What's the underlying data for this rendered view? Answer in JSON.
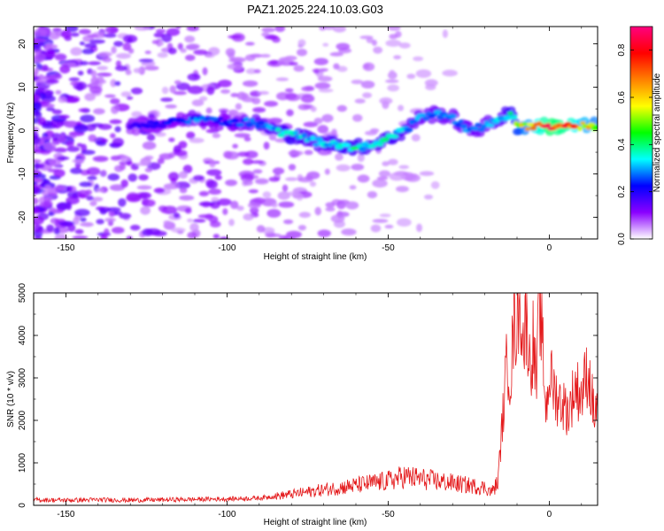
{
  "title": "PAZ1.2025.224.10.03.G03",
  "chart_data": [
    {
      "type": "heatmap",
      "xlabel": "Height of straight line (km)",
      "ylabel": "Frequency (Hz)",
      "xlim": [
        -160,
        15
      ],
      "ylim": [
        -25,
        24
      ],
      "xticks": [
        -150,
        -100,
        -50,
        0
      ],
      "yticks": [
        -20,
        -10,
        0,
        10,
        20
      ],
      "colorbar": {
        "label": "Normalized spectral amplitude",
        "range": [
          0.0,
          0.9
        ],
        "ticks": [
          0.0,
          0.2,
          0.4,
          0.6,
          0.8
        ],
        "colormap": [
          "#ffffff",
          "#8a00ff",
          "#0000ff",
          "#00ffff",
          "#00ff00",
          "#ffff00",
          "#ff8000",
          "#ff0000",
          "#ff0080"
        ]
      },
      "ridge": {
        "x": [
          -130,
          -115,
          -110,
          -100,
          -92,
          -85,
          -80,
          -75,
          -70,
          -65,
          -60,
          -55,
          -50,
          -45,
          -40,
          -35,
          -30,
          -25,
          -20,
          -15,
          -12,
          -10,
          -5,
          0,
          5,
          10,
          15
        ],
        "y": [
          1,
          2,
          3,
          2,
          2,
          0,
          -1,
          -2,
          -3,
          -3,
          -4,
          -3,
          -2,
          0,
          3,
          4,
          3,
          0,
          1,
          3,
          4,
          1,
          1,
          1,
          1,
          1,
          1
        ],
        "amplitude": [
          0.2,
          0.25,
          0.3,
          0.25,
          0.3,
          0.35,
          0.4,
          0.35,
          0.35,
          0.4,
          0.4,
          0.35,
          0.4,
          0.35,
          0.3,
          0.3,
          0.3,
          0.3,
          0.3,
          0.35,
          0.4,
          0.55,
          0.7,
          0.9,
          0.85,
          0.7,
          0.6
        ]
      },
      "background_amplitude": 0.15,
      "grid": false
    },
    {
      "type": "line",
      "xlabel": "Height of straight line (km)",
      "ylabel": "SNR (10 * v/v)",
      "xlim": [
        -160,
        15
      ],
      "ylim": [
        0,
        5000
      ],
      "xticks": [
        -150,
        -100,
        -50,
        0
      ],
      "yticks": [
        0,
        1000,
        2000,
        3000,
        4000,
        5000
      ],
      "color": "#e41a1c",
      "series": [
        {
          "x": [
            -160,
            -150,
            -140,
            -130,
            -120,
            -110,
            -100,
            -90,
            -80,
            -70,
            -60,
            -55,
            -50,
            -45,
            -40,
            -35,
            -30,
            -25,
            -20,
            -18,
            -16,
            -15,
            -14,
            -13,
            -12,
            -11,
            -10,
            -9,
            -8,
            -7,
            -6,
            -5,
            -4,
            -3,
            -2,
            -1,
            0,
            2,
            4,
            6,
            8,
            10,
            12,
            14,
            15
          ],
          "y": [
            120,
            110,
            120,
            110,
            120,
            130,
            140,
            160,
            250,
            350,
            450,
            500,
            550,
            650,
            600,
            550,
            500,
            450,
            400,
            300,
            500,
            1500,
            2500,
            3500,
            3000,
            4200,
            4400,
            5000,
            3800,
            4600,
            3200,
            3900,
            2800,
            4900,
            3600,
            2200,
            3100,
            2600,
            2400,
            2200,
            2800,
            2600,
            3200,
            2100,
            2500
          ]
        }
      ],
      "grid": false
    }
  ]
}
